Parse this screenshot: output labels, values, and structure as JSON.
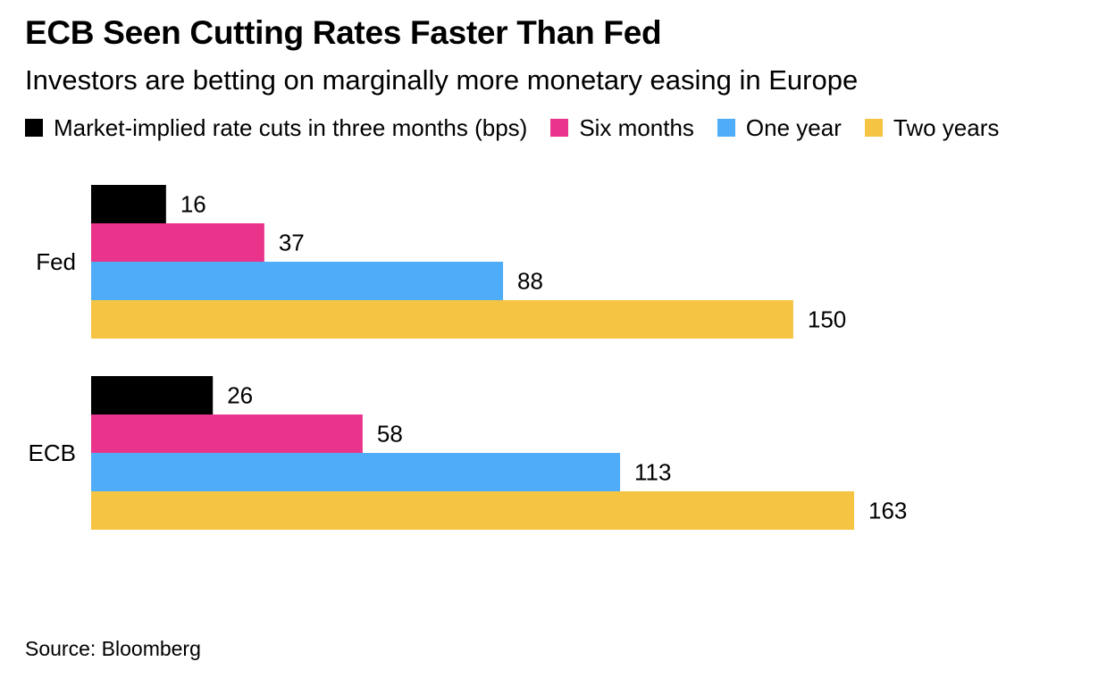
{
  "chart_data": {
    "type": "bar",
    "orientation": "horizontal",
    "title": "ECB Seen Cutting Rates Faster Than Fed",
    "subtitle": "Investors are betting on marginally more monetary easing in Europe",
    "categories": [
      "Fed",
      "ECB"
    ],
    "series": [
      {
        "name": "Market-implied rate cuts in three months (bps)",
        "color": "#000000",
        "values": [
          16,
          26
        ]
      },
      {
        "name": "Six months",
        "color": "#ea338a",
        "values": [
          37,
          58
        ]
      },
      {
        "name": "One year",
        "color": "#4eacf8",
        "values": [
          88,
          113
        ]
      },
      {
        "name": "Two years",
        "color": "#f6c443",
        "values": [
          150,
          163
        ]
      }
    ],
    "xlim": [
      0,
      163
    ],
    "grid": false,
    "legend_position": "top-left",
    "data_labels": true
  },
  "source": "Source: Bloomberg"
}
